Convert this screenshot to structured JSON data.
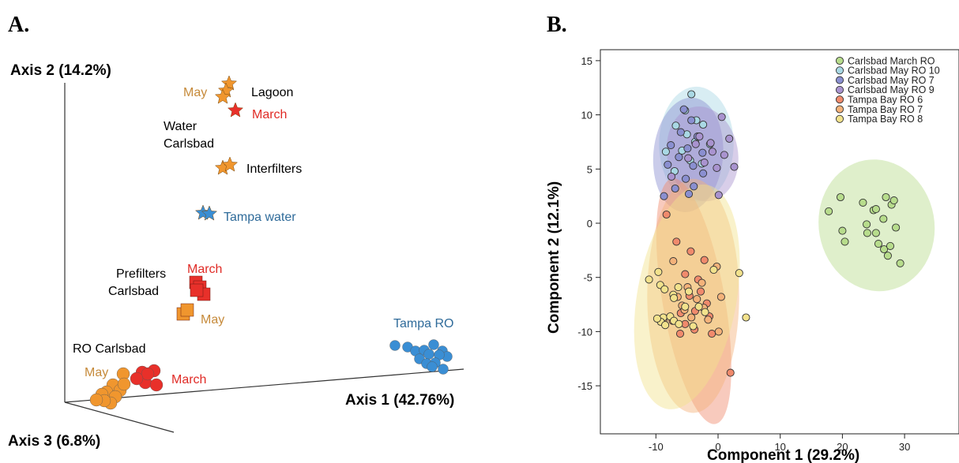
{
  "panel_a": {
    "letter": "A.",
    "axis1": "Axis 1 (42.76%)",
    "axis2": "Axis 2 (14.2%)",
    "axis3": "Axis 3 (6.8%)",
    "labels": {
      "may_water": "May",
      "lagoon": "Lagoon",
      "march_water": "March",
      "water": "Water",
      "carlsbad_water": "Carlsbad",
      "interfilters": "Interfilters",
      "tampa_water": "Tampa water",
      "march_prefilters": "March",
      "prefilters": "Prefilters",
      "carlsbad_prefilters": "Carlsbad",
      "may_prefilters": "May",
      "tampa_ro": "Tampa RO",
      "ro_carlsbad": "RO Carlsbad",
      "may_ro": "May",
      "march_ro": "March"
    },
    "colors": {
      "may": "#f0962e",
      "march": "#e8302a",
      "tampa": "#3a8ed4",
      "may_text": "#c68a3a",
      "march_text": "#e02b26",
      "tampa_text": "#2f6b9a"
    }
  },
  "panel_b": {
    "letter": "B."
  },
  "chart_data": [
    {
      "type": "scatter",
      "description_axes": "PCoA 3D ordination",
      "xlabel": "Axis 1 (42.76%)",
      "ylabel": "Axis 2 (14.2%)",
      "zlabel": "Axis 3 (6.8%)",
      "groups": [
        {
          "name": "May",
          "sample": "Lagoon",
          "marker": "star",
          "color": "#f0962e",
          "count": 3
        },
        {
          "name": "March",
          "sample": "Lagoon",
          "marker": "star",
          "color": "#e8302a",
          "count": 1
        },
        {
          "name": "Interfilters",
          "sample": "Water Carlsbad",
          "marker": "star",
          "color": "#f0962e",
          "count": 2
        },
        {
          "name": "Tampa water",
          "marker": "star",
          "color": "#3a8ed4",
          "count": 2
        },
        {
          "name": "March",
          "sample": "Prefilters Carlsbad",
          "marker": "square",
          "color": "#e8302a",
          "count": 4
        },
        {
          "name": "May",
          "sample": "Prefilters Carlsbad",
          "marker": "square",
          "color": "#f0962e",
          "count": 2
        },
        {
          "name": "Tampa RO",
          "marker": "circle",
          "color": "#3a8ed4",
          "count": 14
        },
        {
          "name": "May",
          "sample": "RO Carlsbad",
          "marker": "circle",
          "color": "#f0962e",
          "count": 10
        },
        {
          "name": "March",
          "sample": "RO Carlsbad",
          "marker": "circle",
          "color": "#e8302a",
          "count": 6
        }
      ]
    },
    {
      "type": "scatter",
      "xlabel": "Component 1 (29.2%)",
      "ylabel": "Component 2 (12.1%)",
      "xlim": [
        -20,
        38
      ],
      "ylim": [
        -18,
        16
      ],
      "xticks": [
        "-10",
        "0",
        "10",
        "20",
        "30"
      ],
      "yticks": [
        "15",
        "10",
        "5",
        "0",
        "-5",
        "-10",
        "-15"
      ],
      "xtick_values": [
        -10,
        0,
        10,
        20,
        30
      ],
      "ytick_values": [
        15,
        10,
        5,
        0,
        -5,
        -10,
        -15
      ],
      "legend_position": "top-right",
      "series": [
        {
          "name": "Carlsbad March RO",
          "color": "#b7dc8c",
          "ellipse": {
            "cx": 25.5,
            "cy": -0.2,
            "rx": 9.3,
            "ry": 6.1,
            "angle": -10
          },
          "points": [
            [
              17.8,
              1.1
            ],
            [
              19.7,
              2.4
            ],
            [
              20.0,
              -0.7
            ],
            [
              20.4,
              -1.7
            ],
            [
              23.3,
              1.9
            ],
            [
              23.9,
              -0.1
            ],
            [
              25.0,
              1.2
            ],
            [
              25.4,
              1.3
            ],
            [
              25.4,
              -0.9
            ],
            [
              26.6,
              0.4
            ],
            [
              26.7,
              -2.4
            ],
            [
              27.0,
              2.4
            ],
            [
              27.3,
              -3.0
            ],
            [
              27.7,
              -2.1
            ],
            [
              27.9,
              1.7
            ],
            [
              28.3,
              2.1
            ],
            [
              28.6,
              -0.4
            ],
            [
              29.3,
              -3.7
            ],
            [
              25.8,
              -1.9
            ],
            [
              24.0,
              -0.9
            ]
          ]
        },
        {
          "name": "Carlsbad May RO 10",
          "color": "#a9d8e4",
          "ellipse": {
            "cx": -3.5,
            "cy": 7.3,
            "rx": 6.0,
            "ry": 5.3,
            "angle": 0
          },
          "points": [
            [
              -4.3,
              11.9
            ],
            [
              -5.3,
              10.4
            ],
            [
              -3.5,
              9.5
            ],
            [
              -2.4,
              9.1
            ],
            [
              -6.8,
              9.0
            ],
            [
              -5.0,
              8.2
            ],
            [
              -3.7,
              7.5
            ],
            [
              -1.3,
              7.3
            ],
            [
              -5.8,
              6.7
            ],
            [
              -8.4,
              6.6
            ],
            [
              -4.5,
              5.8
            ],
            [
              -2.6,
              5.5
            ],
            [
              -7.0,
              4.8
            ]
          ]
        },
        {
          "name": "Carlsbad May RO 7",
          "color": "#8a8fd0",
          "ellipse": {
            "cx": -4.8,
            "cy": 6.3,
            "rx": 5.6,
            "ry": 5.3,
            "angle": 5
          },
          "points": [
            [
              -5.5,
              10.5
            ],
            [
              -4.3,
              9.5
            ],
            [
              -6.0,
              8.4
            ],
            [
              -3.3,
              8.0
            ],
            [
              -7.6,
              7.2
            ],
            [
              -4.9,
              6.9
            ],
            [
              -2.5,
              6.5
            ],
            [
              -6.3,
              6.1
            ],
            [
              -4.0,
              5.3
            ],
            [
              -8.1,
              5.4
            ],
            [
              -5.2,
              4.1
            ],
            [
              -3.9,
              3.4
            ],
            [
              -6.9,
              3.2
            ],
            [
              -8.7,
              2.5
            ],
            [
              -4.7,
              2.7
            ],
            [
              -2.4,
              4.6
            ]
          ]
        },
        {
          "name": "Carlsbad May RO 9",
          "color": "#a993cf",
          "ellipse": {
            "cx": -2.5,
            "cy": 6.4,
            "rx": 5.7,
            "ry": 4.4,
            "angle": -10
          },
          "points": [
            [
              -3.0,
              8.0
            ],
            [
              -1.2,
              7.4
            ],
            [
              0.6,
              9.8
            ],
            [
              1.8,
              7.8
            ],
            [
              -0.9,
              6.6
            ],
            [
              1.0,
              6.3
            ],
            [
              2.6,
              5.2
            ],
            [
              -2.2,
              5.6
            ],
            [
              -0.2,
              5.1
            ],
            [
              -4.8,
              6.0
            ],
            [
              -7.5,
              4.3
            ],
            [
              0.1,
              2.6
            ],
            [
              -3.6,
              7.3
            ]
          ]
        },
        {
          "name": "Tampa Bay RO 6",
          "color": "#f08a6c",
          "ellipse": {
            "cx": -3.9,
            "cy": -7.2,
            "rx": 5.0,
            "ry": 11.5,
            "angle": -10
          },
          "points": [
            [
              -8.3,
              0.8
            ],
            [
              -6.7,
              -1.7
            ],
            [
              -4.4,
              -2.6
            ],
            [
              -2.2,
              -3.4
            ],
            [
              -5.3,
              -4.7
            ],
            [
              -3.2,
              -5.2
            ],
            [
              -4.6,
              -6.7
            ],
            [
              -1.8,
              -7.4
            ],
            [
              -6.0,
              -8.3
            ],
            [
              -3.7,
              -8.1
            ],
            [
              -1.4,
              -8.6
            ],
            [
              -5.3,
              -9.3
            ],
            [
              -3.8,
              -9.8
            ],
            [
              -6.1,
              -10.2
            ],
            [
              -1.0,
              -10.2
            ],
            [
              2.0,
              -13.8
            ],
            [
              -7.3,
              -9.0
            ],
            [
              -2.8,
              -6.3
            ]
          ]
        },
        {
          "name": "Tampa Bay RO 7",
          "color": "#f4b27a",
          "ellipse": {
            "cx": -4.0,
            "cy": -6.7,
            "rx": 7.4,
            "ry": 10.8,
            "angle": 0
          },
          "points": [
            [
              -7.2,
              -3.5
            ],
            [
              -4.9,
              -5.9
            ],
            [
              -2.6,
              -5.5
            ],
            [
              -0.2,
              -4.0
            ],
            [
              -6.5,
              -6.8
            ],
            [
              -3.4,
              -7.0
            ],
            [
              0.5,
              -6.8
            ],
            [
              -5.8,
              -7.6
            ],
            [
              -2.3,
              -7.8
            ],
            [
              -4.3,
              -8.7
            ],
            [
              -1.6,
              -8.9
            ],
            [
              0.1,
              -10.0
            ],
            [
              -8.8,
              -9.0
            ],
            [
              -5.4,
              -8.0
            ]
          ]
        },
        {
          "name": "Tampa Bay RO 8",
          "color": "#f2e28c",
          "ellipse": {
            "cx": -5.0,
            "cy": -6.8,
            "rx": 8.0,
            "ry": 10.5,
            "angle": 10
          },
          "points": [
            [
              -9.6,
              -4.5
            ],
            [
              -11.1,
              -5.2
            ],
            [
              -9.3,
              -5.7
            ],
            [
              -8.6,
              -6.1
            ],
            [
              -6.4,
              -5.9
            ],
            [
              -7.2,
              -6.6
            ],
            [
              -4.7,
              -6.3
            ],
            [
              -7.1,
              -6.9
            ],
            [
              -5.3,
              -7.7
            ],
            [
              -3.1,
              -7.7
            ],
            [
              -8.8,
              -8.7
            ],
            [
              -9.2,
              -9.1
            ],
            [
              -7.7,
              -8.6
            ],
            [
              -8.5,
              -9.4
            ],
            [
              -7.1,
              -9.0
            ],
            [
              -6.3,
              -9.3
            ],
            [
              -2.1,
              -8.2
            ],
            [
              -0.7,
              -4.3
            ],
            [
              4.5,
              -8.7
            ],
            [
              3.4,
              -4.6
            ],
            [
              -9.8,
              -8.8
            ],
            [
              -4.0,
              -9.5
            ]
          ]
        }
      ]
    }
  ]
}
